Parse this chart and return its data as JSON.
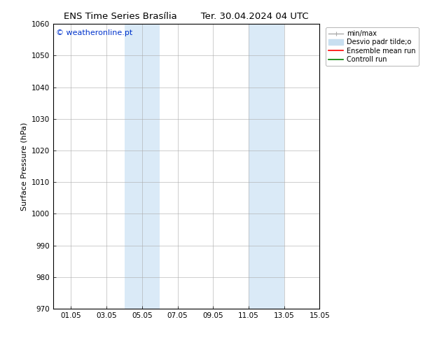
{
  "title_left": "ENS Time Series Brasília",
  "title_right": "Ter. 30.04.2024 04 UTC",
  "ylabel": "Surface Pressure (hPa)",
  "ylim": [
    970,
    1060
  ],
  "yticks": [
    970,
    980,
    990,
    1000,
    1010,
    1020,
    1030,
    1040,
    1050,
    1060
  ],
  "xlim": [
    0.0,
    15.0
  ],
  "xtick_positions": [
    1,
    3,
    5,
    7,
    9,
    11,
    13,
    15
  ],
  "xtick_labels": [
    "01.05",
    "03.05",
    "05.05",
    "07.05",
    "09.05",
    "11.05",
    "13.05",
    "15.05"
  ],
  "shaded_regions": [
    {
      "xmin": 4.0,
      "xmax": 6.0,
      "color": "#daeaf7"
    },
    {
      "xmin": 11.0,
      "xmax": 13.0,
      "color": "#daeaf7"
    }
  ],
  "watermark_text": "© weatheronline.pt",
  "watermark_color": "#0033cc",
  "watermark_fontsize": 8,
  "legend_labels": [
    "min/max",
    "Desvio padr tilde;o",
    "Ensemble mean run",
    "Controll run"
  ],
  "legend_colors": [
    "#aaaaaa",
    "#c8dff0",
    "red",
    "green"
  ],
  "bg_color": "#ffffff",
  "plot_bg_color": "#ffffff",
  "grid_color": "#aaaaaa",
  "spine_color": "#000000",
  "title_fontsize": 9.5,
  "tick_fontsize": 7.5,
  "label_fontsize": 8,
  "legend_fontsize": 7
}
